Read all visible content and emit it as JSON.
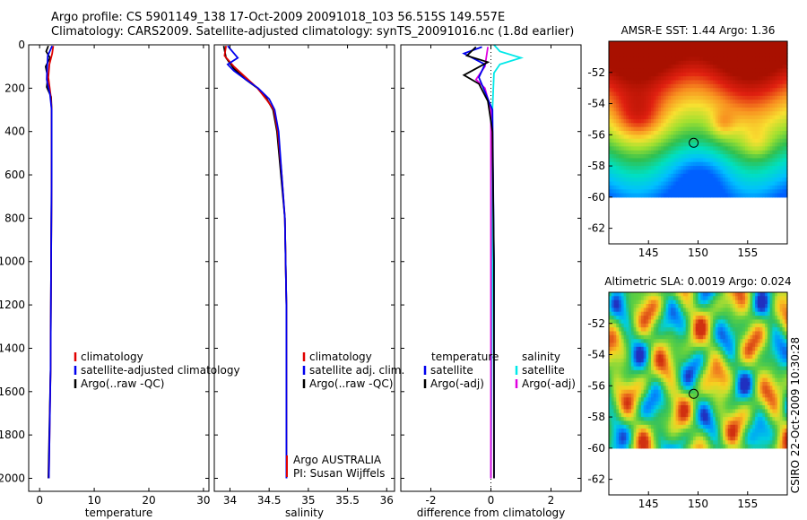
{
  "header": {
    "line1": "Argo profile: CS 5901149_138 17-Oct-2009 20091018_103 56.515S 149.557E",
    "line2": "Climatology: CARS2009. Satellite-adjusted climatology: synTS_20091016.nc (1.8d earlier)"
  },
  "side_stamp": "CSIRO 22-Oct-2009 10:30:28",
  "chart_data": [
    {
      "id": "temperature",
      "type": "line",
      "xlabel": "temperature",
      "xlim": [
        -2,
        31
      ],
      "xticks": [
        0,
        10,
        20,
        30
      ],
      "ylim": [
        2060,
        0
      ],
      "yticks": [
        0,
        200,
        400,
        600,
        800,
        1000,
        1200,
        1400,
        1600,
        1800,
        2000
      ],
      "legend": {
        "placement": "lower-middle",
        "entries": [
          {
            "label": "climatology",
            "color": "#e00000"
          },
          {
            "label": "satellite-adjusted climatology",
            "color": "#0000ee"
          },
          {
            "label": "Argo(..raw -QC)",
            "color": "#000000"
          }
        ]
      },
      "series": [
        {
          "color": "#000000",
          "points": [
            [
              1.6,
              5
            ],
            [
              1.2,
              30
            ],
            [
              1.9,
              60
            ],
            [
              1.1,
              100
            ],
            [
              1.5,
              150
            ],
            [
              1.3,
              195
            ],
            [
              2.1,
              240
            ],
            [
              2.2,
              300
            ],
            [
              2.2,
              500
            ],
            [
              2.1,
              1000
            ],
            [
              2.0,
              1500
            ],
            [
              1.6,
              2000
            ]
          ]
        },
        {
          "color": "#e00000",
          "points": [
            [
              2.5,
              5
            ],
            [
              2.3,
              40
            ],
            [
              1.8,
              90
            ],
            [
              1.6,
              150
            ],
            [
              2.0,
              230
            ],
            [
              2.2,
              300
            ],
            [
              2.2,
              600
            ],
            [
              2.1,
              1000
            ],
            [
              2.0,
              1500
            ],
            [
              1.7,
              2000
            ]
          ]
        },
        {
          "color": "#0000ee",
          "points": [
            [
              2.3,
              5
            ],
            [
              1.5,
              50
            ],
            [
              1.4,
              100
            ],
            [
              1.3,
              160
            ],
            [
              1.9,
              230
            ],
            [
              2.2,
              300
            ],
            [
              2.2,
              600
            ],
            [
              2.1,
              1000
            ],
            [
              2.0,
              1500
            ],
            [
              1.7,
              2000
            ]
          ]
        }
      ]
    },
    {
      "id": "salinity",
      "type": "line",
      "xlabel": "salinity",
      "xlim": [
        33.8,
        36.1
      ],
      "xticks": [
        34,
        34.5,
        35,
        35.5,
        36
      ],
      "xtick_labels": [
        "34",
        "34.5",
        "35",
        "35.5",
        "36"
      ],
      "ylim": [
        2060,
        0
      ],
      "legend": {
        "placement": "lower-right",
        "entries": [
          {
            "label": "climatology",
            "color": "#e00000"
          },
          {
            "label": "satellite adj. clim.",
            "color": "#0000ee"
          },
          {
            "label": "Argo(..raw -QC)",
            "color": "#000000"
          }
        ]
      },
      "annotation": [
        "Argo AUSTRALIA",
        "PI: Susan Wijffels"
      ],
      "series": [
        {
          "color": "#000000",
          "points": [
            [
              33.92,
              5
            ],
            [
              33.95,
              60
            ],
            [
              34.05,
              110
            ],
            [
              34.2,
              160
            ],
            [
              34.35,
              200
            ],
            [
              34.47,
              250
            ],
            [
              34.55,
              300
            ],
            [
              34.6,
              400
            ],
            [
              34.65,
              600
            ],
            [
              34.7,
              800
            ],
            [
              34.72,
              1200
            ],
            [
              34.72,
              1600
            ],
            [
              34.72,
              2000
            ]
          ]
        },
        {
          "color": "#e00000",
          "points": [
            [
              33.95,
              5
            ],
            [
              33.93,
              50
            ],
            [
              34.05,
              100
            ],
            [
              34.2,
              150
            ],
            [
              34.35,
              200
            ],
            [
              34.46,
              250
            ],
            [
              34.56,
              300
            ],
            [
              34.61,
              400
            ],
            [
              34.66,
              600
            ],
            [
              34.7,
              800
            ],
            [
              34.72,
              1200
            ],
            [
              34.72,
              1600
            ],
            [
              34.72,
              2000
            ]
          ]
        },
        {
          "color": "#0000ee",
          "points": [
            [
              33.97,
              5
            ],
            [
              34.1,
              60
            ],
            [
              33.97,
              90
            ],
            [
              34.05,
              120
            ],
            [
              34.2,
              160
            ],
            [
              34.36,
              200
            ],
            [
              34.5,
              250
            ],
            [
              34.57,
              300
            ],
            [
              34.62,
              400
            ],
            [
              34.66,
              600
            ],
            [
              34.7,
              800
            ],
            [
              34.72,
              1200
            ],
            [
              34.72,
              1600
            ],
            [
              34.72,
              2000
            ]
          ]
        }
      ]
    },
    {
      "id": "difference",
      "type": "line",
      "xlabel": "difference from climatology",
      "xlim": [
        -3,
        3
      ],
      "xticks": [
        -2,
        0,
        2
      ],
      "ylim": [
        2060,
        0
      ],
      "legend": {
        "placement": "lower-middle",
        "groups": [
          {
            "title": "temperature",
            "entries": [
              {
                "label": "satellite",
                "color": "#0000ee"
              },
              {
                "label": "Argo(-adj)",
                "color": "#000000"
              }
            ]
          },
          {
            "title": "salinity",
            "entries": [
              {
                "label": "satellite",
                "color": "#00e8e8"
              },
              {
                "label": "Argo(-adj)",
                "color": "#e000e0"
              }
            ]
          }
        ]
      },
      "series": [
        {
          "color": "#00e8e8",
          "points": [
            [
              0.1,
              0
            ],
            [
              0.3,
              30
            ],
            [
              1.0,
              60
            ],
            [
              0.3,
              90
            ],
            [
              0.1,
              130
            ],
            [
              0.05,
              300
            ],
            [
              0.05,
              1000
            ],
            [
              0.0,
              2000
            ]
          ]
        },
        {
          "color": "#e000e0",
          "points": [
            [
              -0.1,
              10
            ],
            [
              -0.2,
              100
            ],
            [
              -0.5,
              160
            ],
            [
              -0.2,
              200
            ],
            [
              0.0,
              300
            ],
            [
              0.0,
              1000
            ],
            [
              0.0,
              2000
            ]
          ]
        },
        {
          "color": "#0000ee",
          "points": [
            [
              -0.3,
              10
            ],
            [
              -0.9,
              40
            ],
            [
              -0.2,
              90
            ],
            [
              -0.4,
              150
            ],
            [
              0.05,
              300
            ],
            [
              0.1,
              1000
            ],
            [
              0.1,
              2000
            ]
          ]
        },
        {
          "color": "#000000",
          "points": [
            [
              -0.5,
              10
            ],
            [
              -0.8,
              50
            ],
            [
              -0.1,
              80
            ],
            [
              -0.9,
              140
            ],
            [
              -0.4,
              180
            ],
            [
              -0.1,
              260
            ],
            [
              0.05,
              400
            ],
            [
              0.1,
              1000
            ],
            [
              0.1,
              2000
            ]
          ]
        }
      ]
    },
    {
      "id": "sst_map",
      "type": "heatmap",
      "title": "AMSR-E SST: 1.44 Argo: 1.36",
      "xlim": [
        141,
        159
      ],
      "ylim": [
        -63,
        -50
      ],
      "xticks": [
        145,
        150,
        155
      ],
      "yticks": [
        -52,
        -54,
        -56,
        -58,
        -60,
        -62
      ],
      "data_bottom": -60,
      "marker": {
        "lon": 149.557,
        "lat": -56.515
      },
      "colormap": [
        "#0060ff",
        "#00c0ff",
        "#00e0c0",
        "#30c050",
        "#a0e030",
        "#f8e030",
        "#f89020",
        "#e02010",
        "#a81000"
      ],
      "color_range": [
        -0.5,
        6.5
      ]
    },
    {
      "id": "sla_map",
      "type": "heatmap",
      "title": "Altimetric SLA: 0.0019 Argo: 0.024",
      "xlim": [
        141,
        159
      ],
      "ylim": [
        -63,
        -50
      ],
      "xticks": [
        145,
        150,
        155
      ],
      "yticks": [
        -52,
        -54,
        -56,
        -58,
        -60,
        -62
      ],
      "data_bottom": -60,
      "marker": {
        "lon": 149.557,
        "lat": -56.515
      },
      "colormap": [
        "#2030c0",
        "#0090ff",
        "#00d0e0",
        "#30c060",
        "#60d040",
        "#c0e030",
        "#f8d020",
        "#f08020",
        "#d03010"
      ],
      "color_range": [
        -0.3,
        0.3
      ]
    }
  ]
}
